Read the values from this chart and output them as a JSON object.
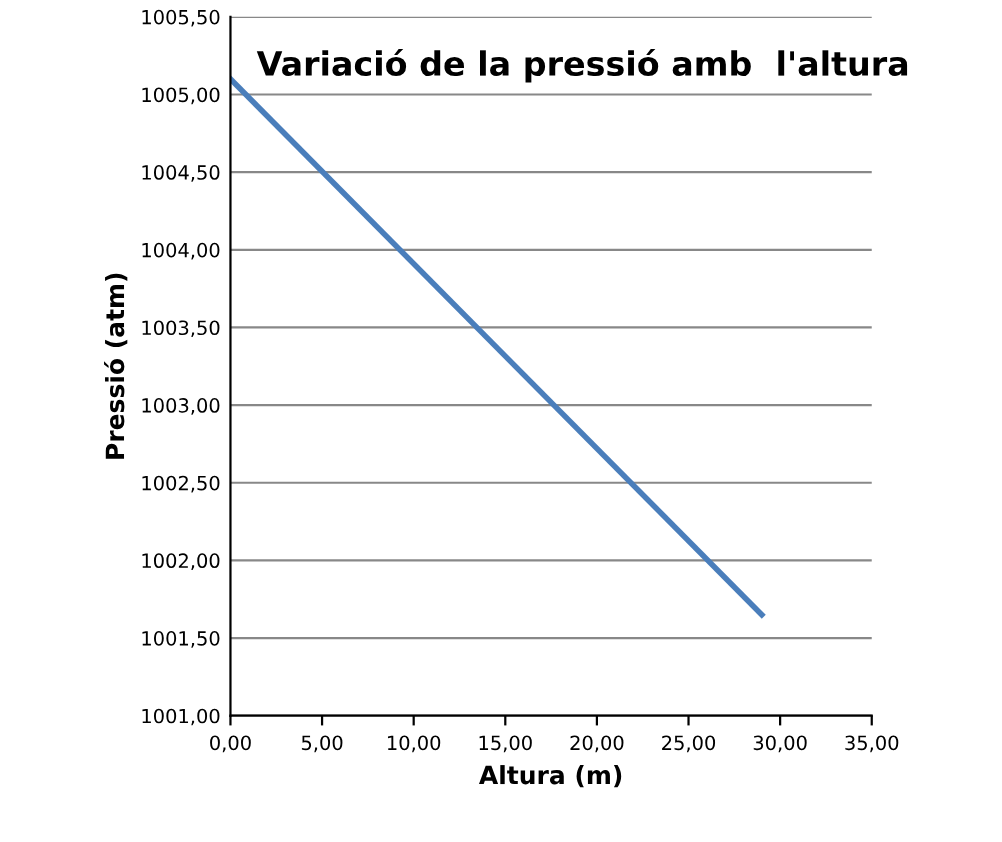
{
  "chart_data": {
    "type": "line",
    "title": "Variació de la pressió amb  l'altura",
    "xlabel": "Altura (m)",
    "ylabel": "Pressió (atm)",
    "series": [
      {
        "color": "#4a7ebb",
        "x": [
          0,
          29
        ],
        "values": [
          1005.1,
          1001.65
        ]
      }
    ],
    "xlim": [
      0,
      35
    ],
    "xticks": [
      {
        "value": 0,
        "label": "0,00"
      },
      {
        "value": 5,
        "label": "5,00"
      },
      {
        "value": 10,
        "label": "10,00"
      },
      {
        "value": 15,
        "label": "15,00"
      },
      {
        "value": 20,
        "label": "20,00"
      },
      {
        "value": 25,
        "label": "25,00"
      },
      {
        "value": 30,
        "label": "30,00"
      },
      {
        "value": 35,
        "label": "35,00"
      }
    ],
    "ylim": [
      1001,
      1005.5
    ],
    "yticks": [
      {
        "value": 1001,
        "label": "1001,00"
      },
      {
        "value": 1001.5,
        "label": "1001,50"
      },
      {
        "value": 1002,
        "label": "1002,00"
      },
      {
        "value": 1002.5,
        "label": "1002,50"
      },
      {
        "value": 1003,
        "label": "1003,00"
      },
      {
        "value": 1003.5,
        "label": "1003,50"
      },
      {
        "value": 1004,
        "label": "1004,00"
      },
      {
        "value": 1004.5,
        "label": "1004,50"
      },
      {
        "value": 1005,
        "label": "1005,00"
      },
      {
        "value": 1005.5,
        "label": "1005,50"
      }
    ],
    "grid": "y",
    "legend": false,
    "marker": "none",
    "line_style": "solid"
  }
}
